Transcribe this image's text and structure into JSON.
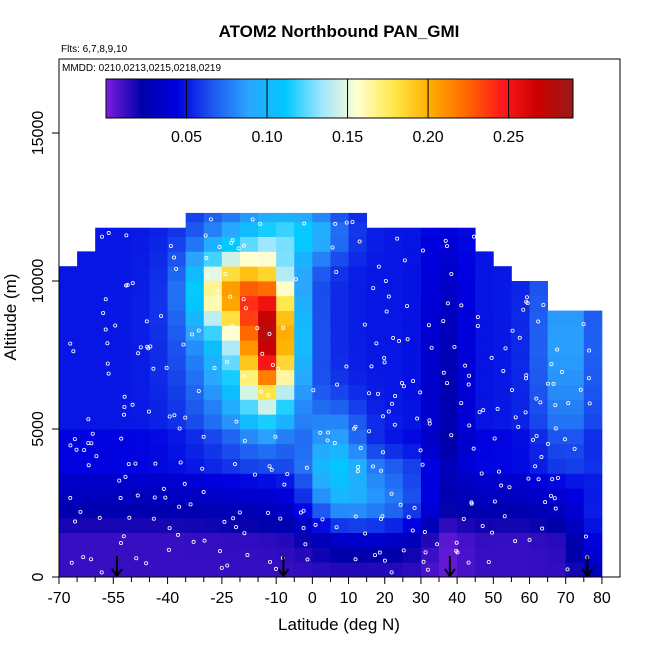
{
  "chart_data": {
    "type": "heatmap",
    "title": "ATOM2 Northbound PAN_GMI",
    "subtitle_flights": "Flts: 6,7,8,9,10",
    "subtitle_dates": "MMDD: 0210,0213,0215,0218,0219",
    "xlabel": "Latitude (deg N)",
    "ylabel": "Altitude (m)",
    "xlim": [
      -70,
      85
    ],
    "ylim": [
      0,
      17500
    ],
    "x_ticks": [
      -70,
      -55,
      -40,
      -25,
      -10,
      0,
      10,
      20,
      30,
      40,
      50,
      60,
      70,
      80
    ],
    "x_tick_labels": [
      "-70",
      "-55",
      "-40",
      "-25",
      "-10",
      "0",
      "10",
      "20",
      "30",
      "40",
      "50",
      "60",
      "70",
      "80"
    ],
    "y_ticks": [
      0,
      5000,
      10000,
      15000
    ],
    "y_tick_labels": [
      "0",
      "5000",
      "10000",
      "15000"
    ],
    "colorbar": {
      "range": [
        0.0,
        0.29
      ],
      "ticks": [
        0.05,
        0.1,
        0.15,
        0.2,
        0.25
      ],
      "tick_labels": [
        "0.05",
        "0.10",
        "0.15",
        "0.20",
        "0.25"
      ],
      "colors": [
        "#7a1fe0",
        "#0000aa",
        "#0000e0",
        "#1e5af0",
        "#2aa7ff",
        "#00c8ff",
        "#9fe6ff",
        "#ffffd0",
        "#ffe84a",
        "#ffb000",
        "#ff6a00",
        "#ff1a1a",
        "#cc0000",
        "#9a1a1a"
      ]
    },
    "latitude_bins": [
      -67.5,
      -62.5,
      -57.5,
      -52.5,
      -47.5,
      -42.5,
      -37.5,
      -32.5,
      -27.5,
      -22.5,
      -17.5,
      -12.5,
      -7.5,
      -2.5,
      2.5,
      7.5,
      12.5,
      17.5,
      22.5,
      27.5,
      32.5,
      37.5,
      42.5,
      47.5,
      52.5,
      57.5,
      62.5,
      67.5,
      72.5,
      77.5
    ],
    "altitude_bins": [
      250,
      750,
      1250,
      1750,
      2250,
      2750,
      3250,
      3750,
      4250,
      4750,
      5250,
      5750,
      6250,
      6750,
      7250,
      7750,
      8250,
      8750,
      9250,
      9750,
      10250,
      10750,
      11250,
      11750,
      12250
    ],
    "profile_tops_m": [
      10500,
      11000,
      11800,
      11800,
      11800,
      11800,
      11800,
      12300,
      12300,
      12300,
      12300,
      12300,
      12300,
      12300,
      12300,
      12300,
      12300,
      11800,
      11800,
      11800,
      11800,
      11800,
      11800,
      11000,
      10500,
      10000,
      10000,
      9000,
      9000,
      9000
    ],
    "grid": false,
    "legend": "top-center colorbar",
    "arrow_latitudes": [
      -54,
      -8,
      38,
      76
    ]
  }
}
